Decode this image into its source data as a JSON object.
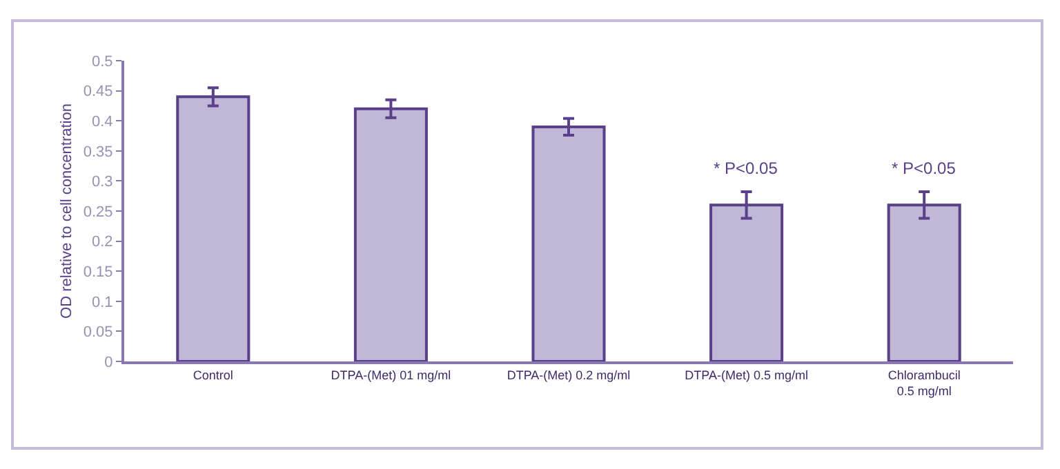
{
  "chart_data": {
    "type": "bar",
    "ylabel": "OD relative to cell concentration",
    "categories": [
      "Control",
      "DTPA-(Met) 01 mg/ml",
      "DTPA-(Met) 0.2 mg/ml",
      "DTPA-(Met) 0.5 mg/ml",
      "Chlorambucil\n0.5 mg/ml"
    ],
    "values": [
      0.44,
      0.42,
      0.39,
      0.26,
      0.26
    ],
    "errors": [
      0.015,
      0.015,
      0.014,
      0.022,
      0.022
    ],
    "color": "#c0b8d6",
    "ylim": [
      0,
      0.5
    ],
    "yticks": [
      0,
      0.05,
      0.1,
      0.15,
      0.2,
      0.25,
      0.3,
      0.35,
      0.4,
      0.45,
      0.5
    ],
    "grid": false,
    "annotations": [
      "* P<0.05",
      "* P<0.05"
    ]
  }
}
